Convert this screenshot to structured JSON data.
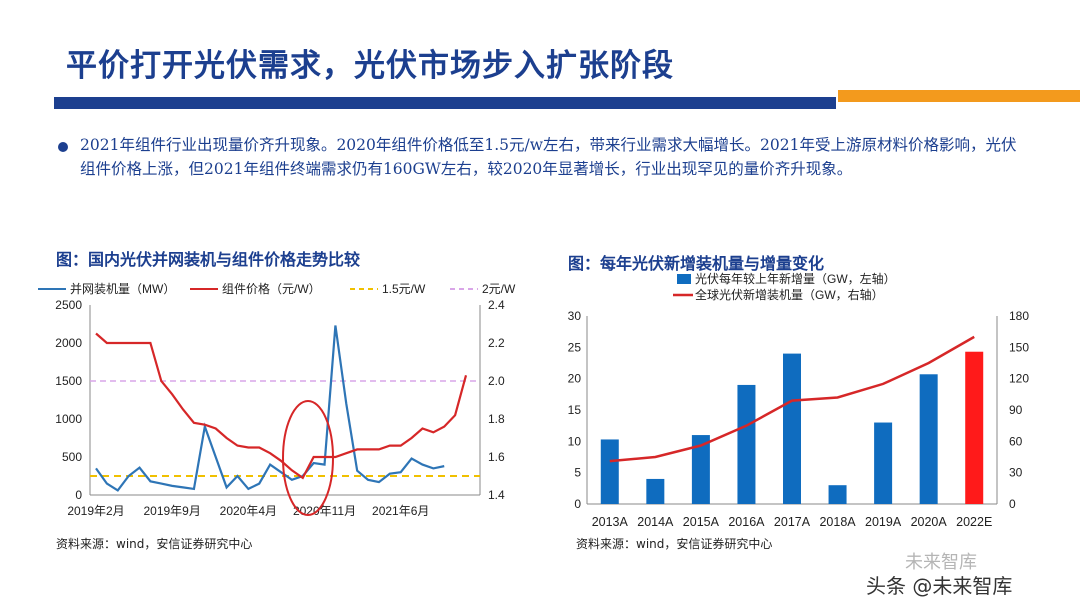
{
  "slide": {
    "title": "平价打开光伏需求，光伏市场步入扩张阶段",
    "bullet": "2021年组件行业出现量价齐升现象。2020年组件价格低至1.5元/w左右，带来行业需求大幅增长。2021年受上游原材料价格影响，光伏组件价格上涨，但2021年组件终端需求仍有160GW左右，较2020年显著增长，行业出现罕见的量价齐升现象。"
  },
  "colors": {
    "brand_blue": "#1c3f8f",
    "accent_orange": "#f39a1d",
    "line_blue": "#2e75b6",
    "line_red": "#d62728",
    "bar_blue": "#0f6cbf",
    "bar_red": "#ff1a1a",
    "ref_yellow": "#f0c000",
    "ref_purple": "#d9a6e8"
  },
  "chart_left": {
    "title": "图：国内光伏并网装机与组件价格走势比较",
    "source": "资料来源：wind，安信证券研究中心",
    "legend": [
      "并网装机量（MW）",
      "组件价格（元/W）",
      "1.5元/W",
      "2元/W"
    ]
  },
  "chart_right": {
    "title": "图：每年光伏新增装机量与增量变化",
    "source": "资料来源：wind，安信证券研究中心",
    "legend": [
      "光伏每年较上年新增量（GW，左轴）",
      "全球光伏新增装机量（GW，右轴）"
    ]
  },
  "watermark": {
    "brand": "头条 @未来智库",
    "faded": "未来智库"
  },
  "chart_data": [
    {
      "type": "line",
      "title": "图：国内光伏并网装机与组件价格走势比较",
      "x_tick_labels": [
        "2019年2月",
        "2019年9月",
        "2020年4月",
        "2020年11月",
        "2021年6月"
      ],
      "x_tick_index": [
        0,
        7,
        14,
        21,
        28
      ],
      "y_left": {
        "ticks": [
          0,
          500,
          1000,
          1500,
          2000,
          2500
        ],
        "ylim": [
          0,
          2500
        ]
      },
      "y_right": {
        "ticks": [
          "1.4",
          "1.6",
          "1.8",
          "2.0",
          "2.2",
          "2.4"
        ],
        "ylim": [
          1.4,
          2.4
        ]
      },
      "series": [
        {
          "name": "并网装机量（MW）",
          "axis": "left",
          "values": [
            350,
            150,
            60,
            250,
            360,
            180,
            150,
            120,
            100,
            80,
            900,
            500,
            100,
            250,
            80,
            150,
            400,
            300,
            200,
            250,
            420,
            400,
            2230,
            1200,
            320,
            200,
            170,
            280,
            300,
            480,
            400,
            350,
            380
          ]
        },
        {
          "name": "组件价格（元/W）",
          "axis": "right",
          "values": [
            2.25,
            2.2,
            2.2,
            2.2,
            2.2,
            2.2,
            2.0,
            1.93,
            1.85,
            1.78,
            1.77,
            1.75,
            1.7,
            1.66,
            1.65,
            1.65,
            1.62,
            1.58,
            1.53,
            1.49,
            1.6,
            1.6,
            1.6,
            1.62,
            1.64,
            1.64,
            1.64,
            1.66,
            1.66,
            1.7,
            1.75,
            1.73,
            1.76,
            1.82,
            2.03
          ]
        },
        {
          "name": "1.5元/W",
          "axis": "right",
          "constant": 1.5
        },
        {
          "name": "2元/W",
          "axis": "right",
          "constant": 2.0
        }
      ],
      "annotation": {
        "type": "ellipse",
        "around": "2020年11月"
      }
    },
    {
      "type": "bar",
      "title": "图：每年光伏新增装机量与增量变化",
      "categories": [
        "2013A",
        "2014A",
        "2015A",
        "2016A",
        "2017A",
        "2018A",
        "2019A",
        "2020A",
        "2022E"
      ],
      "y_left": {
        "ticks": [
          0,
          5,
          10,
          15,
          20,
          25,
          30
        ],
        "ylim": [
          0,
          30
        ]
      },
      "y_right": {
        "ticks": [
          0,
          30,
          60,
          90,
          120,
          150,
          180
        ],
        "ylim": [
          0,
          180
        ]
      },
      "series": [
        {
          "name": "光伏每年较上年新增量（GW，左轴）",
          "type": "bar",
          "axis": "left",
          "values": [
            10.3,
            4,
            11,
            19,
            24,
            3,
            13,
            20.7,
            24.3
          ]
        },
        {
          "name": "全球光伏新增装机量（GW，右轴）",
          "type": "line",
          "axis": "right",
          "values": [
            41,
            45,
            56,
            75,
            99,
            102,
            115,
            135,
            160
          ]
        }
      ],
      "highlight_category": "2022E"
    }
  ]
}
